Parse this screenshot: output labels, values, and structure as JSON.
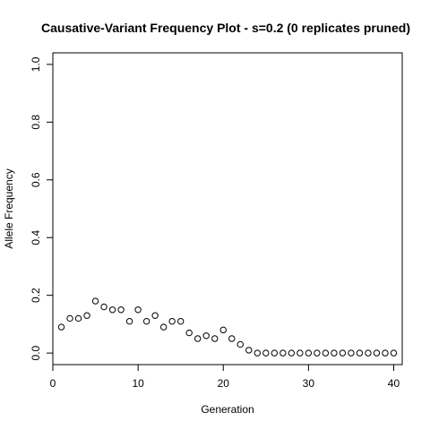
{
  "chart_data": {
    "type": "scatter",
    "title": "Causative-Variant Frequency Plot - s=0.2 (0 replicates pruned)",
    "xlabel": "Generation",
    "ylabel": "Allele Frequency",
    "xlim": [
      0,
      41
    ],
    "ylim": [
      -0.04,
      1.04
    ],
    "x_ticks": [
      0,
      10,
      20,
      30,
      40
    ],
    "y_ticks": [
      0.0,
      0.2,
      0.4,
      0.6,
      0.8,
      1.0
    ],
    "x_tick_labels": [
      "0",
      "10",
      "20",
      "30",
      "40"
    ],
    "y_tick_labels": [
      "0.0",
      "0.2",
      "0.4",
      "0.6",
      "0.8",
      "1.0"
    ],
    "marker": "open-circle",
    "grid": false,
    "x": [
      1,
      2,
      3,
      4,
      5,
      6,
      7,
      8,
      9,
      10,
      11,
      12,
      13,
      14,
      15,
      16,
      17,
      18,
      19,
      20,
      21,
      22,
      23,
      24,
      25,
      26,
      27,
      28,
      29,
      30,
      31,
      32,
      33,
      34,
      35,
      36,
      37,
      38,
      39,
      40
    ],
    "y": [
      0.09,
      0.12,
      0.12,
      0.13,
      0.18,
      0.16,
      0.15,
      0.15,
      0.11,
      0.15,
      0.11,
      0.13,
      0.09,
      0.11,
      0.11,
      0.07,
      0.05,
      0.06,
      0.05,
      0.08,
      0.05,
      0.03,
      0.01,
      0,
      0,
      0,
      0,
      0,
      0,
      0,
      0,
      0,
      0,
      0,
      0,
      0,
      0,
      0,
      0,
      0
    ]
  }
}
